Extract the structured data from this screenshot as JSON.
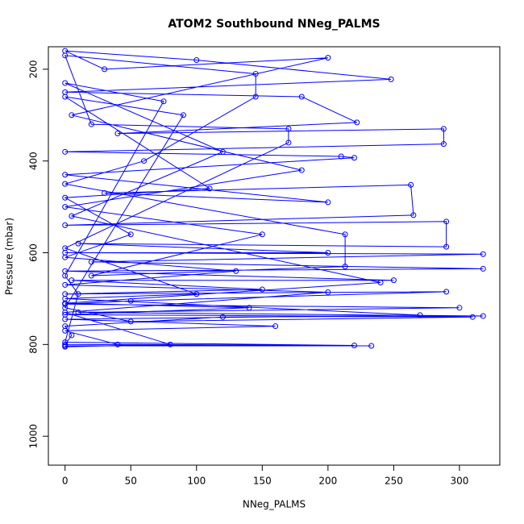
{
  "chart_data": {
    "type": "line",
    "title": "ATOM2 Southbound NNeg_PALMS",
    "x_label": "NNeg_PALMS",
    "y_label": "Pressure (mbar)",
    "color": "#0000ff",
    "markers": true,
    "xlim": [
      -12.7,
      330.7
    ],
    "ylim": [
      1063,
      151
    ],
    "xticks": [
      0,
      50,
      100,
      150,
      200,
      250,
      300
    ],
    "yticks": [
      200,
      400,
      600,
      800,
      1000
    ],
    "x": [
      0,
      233,
      0,
      5,
      0,
      120,
      318,
      10,
      300,
      0,
      50,
      290,
      0,
      150,
      5,
      250,
      0,
      318,
      20,
      318,
      0,
      200,
      10,
      290,
      290,
      0,
      265,
      263,
      30,
      200,
      0,
      220,
      210,
      0,
      288,
      288,
      40,
      222,
      180,
      0,
      248,
      100,
      0,
      30,
      200,
      5,
      180,
      0,
      150,
      20,
      213,
      213,
      0,
      60,
      145,
      145,
      0,
      20,
      170,
      170,
      0,
      100,
      0,
      270,
      0,
      160,
      0,
      40,
      220,
      0,
      10,
      0,
      75,
      0,
      120,
      5,
      240,
      0,
      140,
      0,
      310,
      50,
      0,
      90,
      0,
      110,
      0,
      50,
      0,
      130,
      0,
      200,
      0,
      80,
      0
    ],
    "values": [
      803,
      803,
      800,
      780,
      760,
      740,
      738,
      730,
      720,
      712,
      705,
      685,
      690,
      680,
      660,
      660,
      640,
      635,
      620,
      603,
      600,
      600,
      580,
      587,
      532,
      540,
      518,
      452,
      470,
      490,
      430,
      393,
      390,
      380,
      363,
      330,
      340,
      316,
      260,
      250,
      222,
      180,
      160,
      200,
      175,
      300,
      420,
      500,
      560,
      650,
      630,
      560,
      450,
      400,
      260,
      210,
      170,
      320,
      330,
      360,
      590,
      690,
      700,
      736,
      745,
      760,
      770,
      800,
      802,
      795,
      690,
      650,
      270,
      230,
      380,
      520,
      665,
      710,
      720,
      735,
      740,
      750,
      720,
      300,
      260,
      460,
      480,
      560,
      610,
      640,
      670,
      686,
      730,
      800,
      805
    ]
  }
}
